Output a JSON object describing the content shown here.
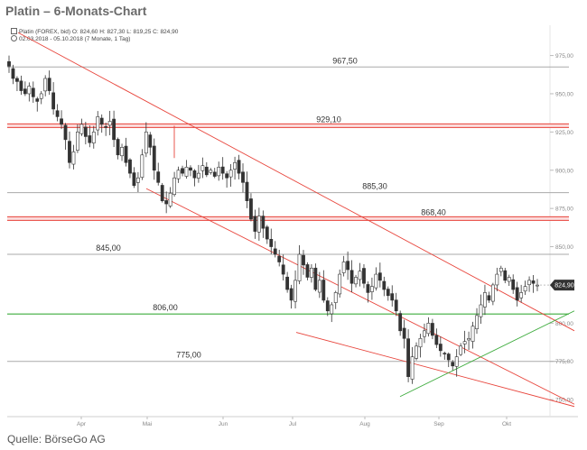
{
  "title": "Platin – 6-Monats-Chart",
  "instrument_line": "Platin (FOREX, bid)  O: 824,60  H: 827,30  L: 819,25  C: 824,90",
  "range_line": "02.03.2018 - 05.10.2018  (7 Monate, 1 Tag)",
  "source": "Quelle: BörseGo AG",
  "colors": {
    "resistance": "#e8453c",
    "channel": "#e8453c",
    "support": "#3cab3c",
    "level": "#aaaaaa",
    "candle": "#333333"
  },
  "chart_data": {
    "type": "candlestick",
    "y_ticks": [
      "975,00",
      "950,00",
      "925,00",
      "900,00",
      "875,00",
      "850,00",
      "825,00",
      "800,00",
      "775,00",
      "750,00"
    ],
    "ylim": [
      743,
      983
    ],
    "x_ticks": [
      "Apr",
      "Mai",
      "Jun",
      "Jul",
      "Aug",
      "Sep",
      "Okt"
    ],
    "last_price_label": "824,90",
    "last_price": 824.9,
    "horizontal_levels": [
      {
        "label": "967,50",
        "value": 967.5,
        "style": "gray"
      },
      {
        "label": "929,10",
        "value": 929.1,
        "style": "red"
      },
      {
        "label": "885,30",
        "value": 885.3,
        "style": "gray"
      },
      {
        "label": "868,40",
        "value": 868.4,
        "style": "red"
      },
      {
        "label": "845,00",
        "value": 845.0,
        "style": "gray"
      },
      {
        "label": "806,00",
        "value": 806.0,
        "style": "green"
      },
      {
        "label": "775,00",
        "value": 775.0,
        "style": "gray"
      }
    ],
    "close_path": [
      968,
      960,
      958,
      952,
      950,
      955,
      948,
      945,
      950,
      960,
      952,
      940,
      935,
      930,
      920,
      905,
      912,
      925,
      930,
      922,
      918,
      925,
      935,
      930,
      928,
      932,
      920,
      910,
      915,
      905,
      898,
      890,
      895,
      910,
      925,
      915,
      900,
      892,
      880,
      878,
      885,
      895,
      900,
      898,
      902,
      900,
      895,
      898,
      903,
      897,
      900,
      896,
      902,
      898,
      895,
      900,
      905,
      898,
      892,
      880,
      868,
      860,
      870,
      862,
      855,
      850,
      845,
      840,
      832,
      822,
      815,
      828,
      845,
      838,
      830,
      836,
      822,
      828,
      815,
      808,
      812,
      820,
      832,
      840,
      835,
      826,
      830,
      834,
      826,
      820,
      824,
      832,
      828,
      822,
      818,
      815,
      808,
      795,
      790,
      765,
      778,
      785,
      790,
      795,
      800,
      792,
      786,
      782,
      780,
      776,
      772,
      778,
      785,
      788,
      790,
      798,
      805,
      812,
      820,
      815,
      825,
      832,
      836,
      828,
      830,
      822,
      815,
      820,
      824,
      828,
      826,
      824.9
    ]
  }
}
